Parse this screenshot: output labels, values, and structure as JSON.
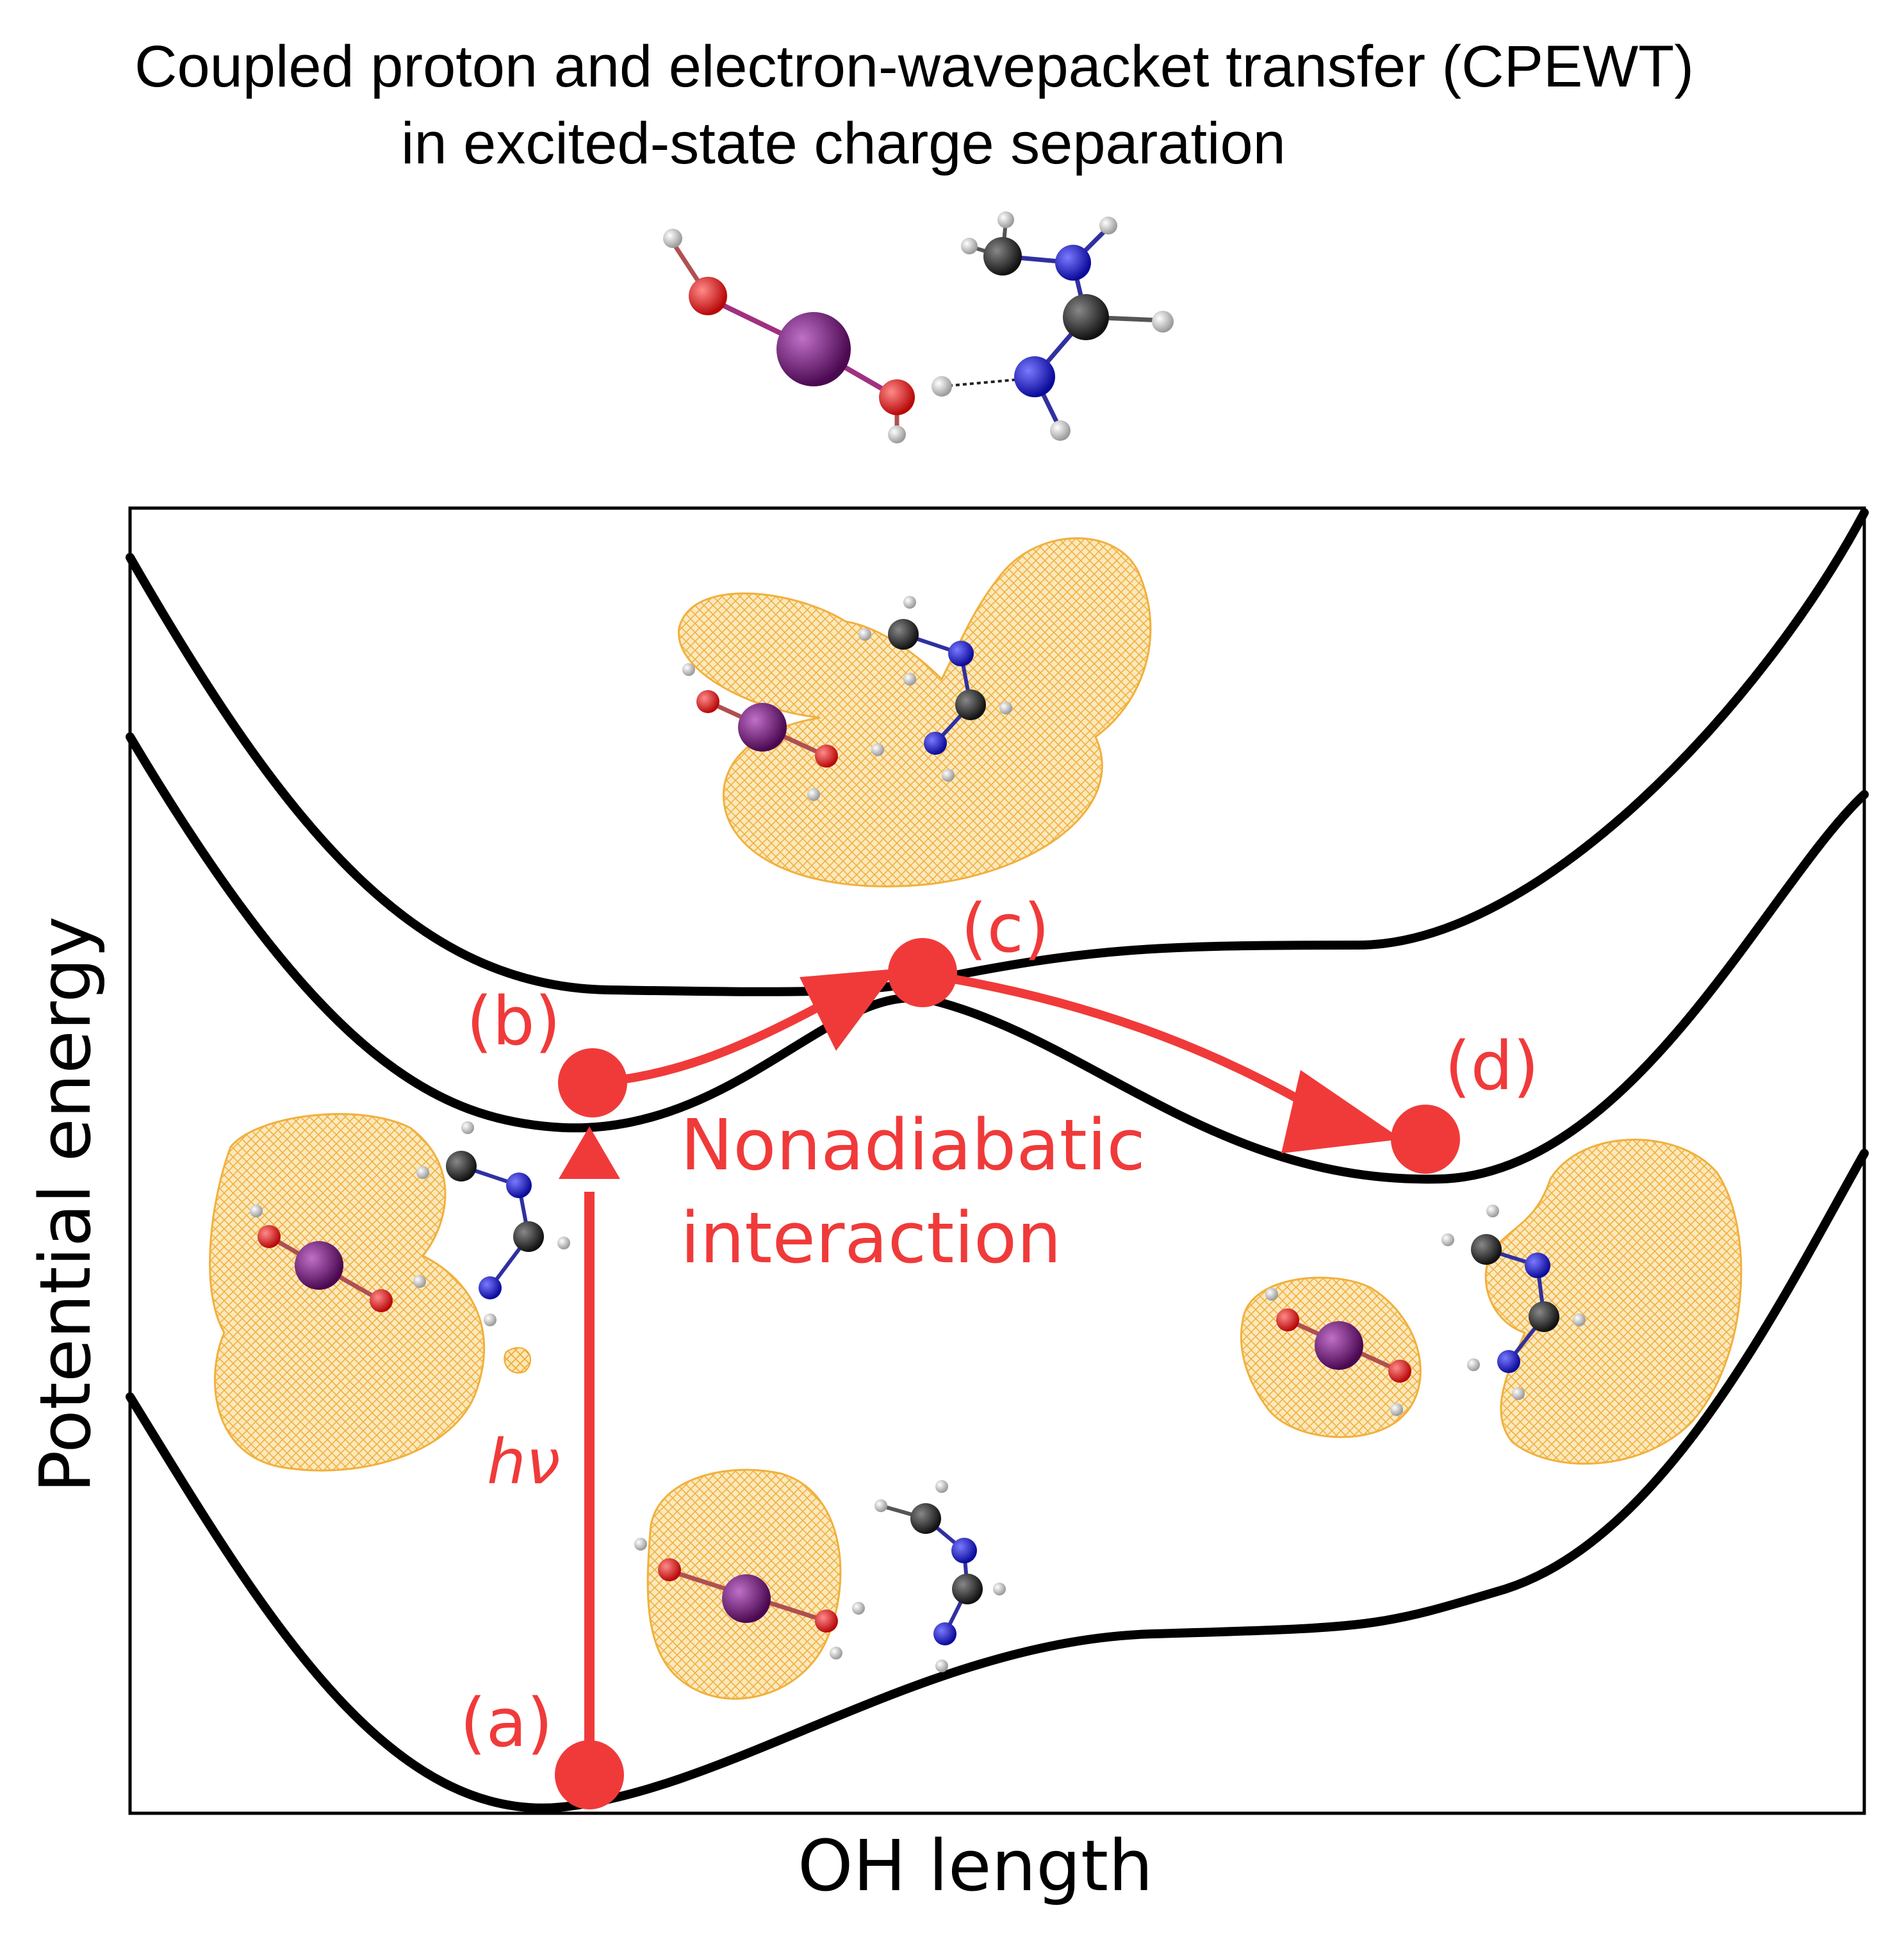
{
  "title": {
    "line1": "Coupled proton and electron-wavepacket transfer (CPEWT)",
    "line2": "in excited-state charge separation"
  },
  "axes": {
    "xlabel": "OH length",
    "ylabel": "Potential energy"
  },
  "states": {
    "a": "(a)",
    "b": "(b)",
    "c": "(c)",
    "d": "(d)"
  },
  "annotations": {
    "photon": "hν",
    "nonadiabatic_line1": "Nonadiabatic",
    "nonadiabatic_line2": "interaction"
  },
  "colors": {
    "accent": "#f03a3a",
    "curve": "#000000",
    "orbital": "#f5b942",
    "oxygen": "#d81010",
    "iodine": "#6a1070",
    "nitrogen": "#1414c8",
    "carbon": "#2a2a2a",
    "hydrogen": "#d8d8d8"
  }
}
